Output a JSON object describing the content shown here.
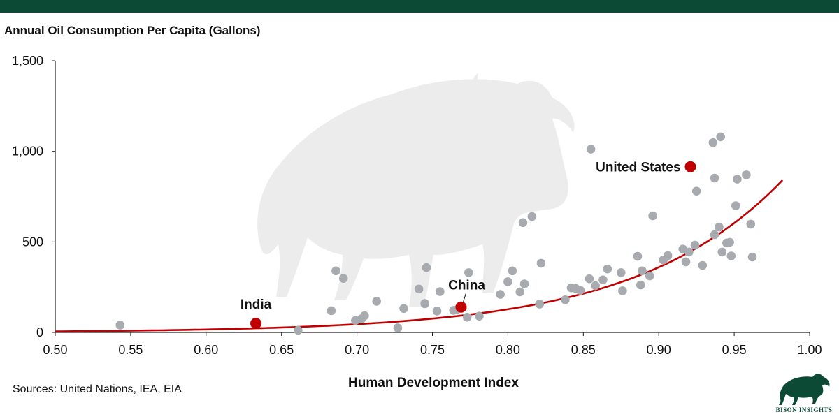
{
  "header_band": {
    "color": "#0c4a36"
  },
  "chart_data": {
    "type": "scatter",
    "title": "",
    "ylabel": "Annual Oil Consumption Per Capita (Gallons)",
    "xlabel": "Human Development Index",
    "xlim": [
      0.5,
      1.0
    ],
    "ylim": [
      0,
      1500
    ],
    "x_ticks": [
      "0.50",
      "0.55",
      "0.60",
      "0.65",
      "0.70",
      "0.75",
      "0.80",
      "0.85",
      "0.90",
      "0.95",
      "1.00"
    ],
    "x_tick_values": [
      0.5,
      0.55,
      0.6,
      0.65,
      0.7,
      0.75,
      0.8,
      0.85,
      0.9,
      0.95,
      1.0
    ],
    "y_ticks": [
      "0",
      "500",
      "1,000",
      "1,500"
    ],
    "y_tick_values": [
      0,
      500,
      1000,
      1500
    ],
    "grid": false,
    "colors": {
      "points": "#a7aaae",
      "highlight": "#c00000",
      "trend": "#c00000",
      "axis": "#222222"
    },
    "points": [
      [
        0.543,
        40
      ],
      [
        0.661,
        12
      ],
      [
        0.683,
        120
      ],
      [
        0.686,
        340
      ],
      [
        0.691,
        298
      ],
      [
        0.699,
        66
      ],
      [
        0.703,
        75
      ],
      [
        0.705,
        92
      ],
      [
        0.713,
        172
      ],
      [
        0.727,
        25
      ],
      [
        0.731,
        132
      ],
      [
        0.741,
        240
      ],
      [
        0.745,
        160
      ],
      [
        0.745,
        158
      ],
      [
        0.746,
        358
      ],
      [
        0.753,
        118
      ],
      [
        0.755,
        225
      ],
      [
        0.764,
        122
      ],
      [
        0.766,
        125
      ],
      [
        0.773,
        84
      ],
      [
        0.774,
        330
      ],
      [
        0.781,
        90
      ],
      [
        0.795,
        210
      ],
      [
        0.8,
        280
      ],
      [
        0.803,
        340
      ],
      [
        0.808,
        224
      ],
      [
        0.81,
        606
      ],
      [
        0.811,
        268
      ],
      [
        0.816,
        640
      ],
      [
        0.821,
        156
      ],
      [
        0.822,
        382
      ],
      [
        0.838,
        180
      ],
      [
        0.842,
        246
      ],
      [
        0.845,
        242
      ],
      [
        0.848,
        232
      ],
      [
        0.855,
        1012
      ],
      [
        0.854,
        296
      ],
      [
        0.858,
        258
      ],
      [
        0.863,
        290
      ],
      [
        0.866,
        350
      ],
      [
        0.875,
        330
      ],
      [
        0.876,
        230
      ],
      [
        0.886,
        420
      ],
      [
        0.888,
        262
      ],
      [
        0.889,
        340
      ],
      [
        0.894,
        312
      ],
      [
        0.896,
        644
      ],
      [
        0.903,
        400
      ],
      [
        0.906,
        424
      ],
      [
        0.916,
        460
      ],
      [
        0.918,
        390
      ],
      [
        0.92,
        444
      ],
      [
        0.924,
        482
      ],
      [
        0.925,
        780
      ],
      [
        0.929,
        370
      ],
      [
        0.936,
        1048
      ],
      [
        0.937,
        540
      ],
      [
        0.937,
        852
      ],
      [
        0.94,
        582
      ],
      [
        0.941,
        1080
      ],
      [
        0.942,
        444
      ],
      [
        0.945,
        494
      ],
      [
        0.947,
        498
      ],
      [
        0.948,
        422
      ],
      [
        0.951,
        700
      ],
      [
        0.952,
        846
      ],
      [
        0.958,
        870
      ],
      [
        0.961,
        598
      ],
      [
        0.962,
        416
      ]
    ],
    "highlighted": [
      {
        "label": "India",
        "x": 0.633,
        "y": 50,
        "label_anchor": "above-left"
      },
      {
        "label": "China",
        "x": 0.769,
        "y": 140,
        "label_anchor": "above-right"
      },
      {
        "label": "United States",
        "x": 0.921,
        "y": 915,
        "label_anchor": "left"
      }
    ],
    "trend": {
      "type": "exponential",
      "a": 0.0324,
      "b": 10.35,
      "x_range": [
        0.5,
        0.982
      ]
    }
  },
  "source": "Sources: United Nations, IEA, EIA",
  "logo": {
    "name": "bison-logo-icon",
    "text": "BISON INSIGHTS"
  }
}
